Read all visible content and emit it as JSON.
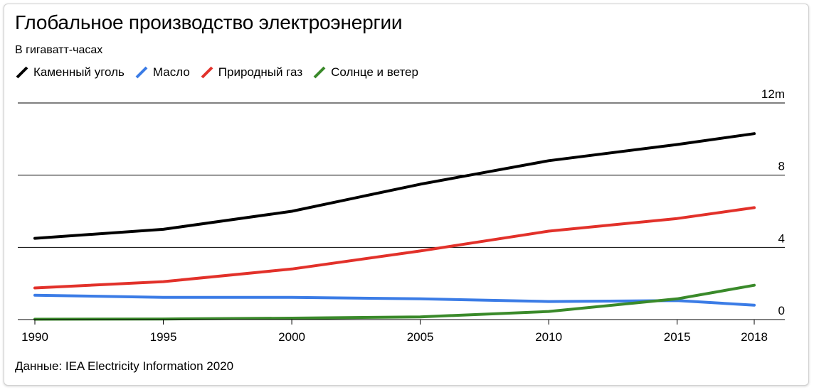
{
  "chart_data": {
    "type": "line",
    "title": "Глобальное производство электроэнергии",
    "subtitle": "В гигаватт-часах",
    "source": "Данные: IEA Electricity Information 2020",
    "x": [
      1990,
      1995,
      2000,
      2005,
      2010,
      2015,
      2018
    ],
    "x_tick_labels": [
      "1990",
      "1995",
      "2000",
      "2005",
      "2010",
      "2015",
      "2018"
    ],
    "y_ticks": [
      0,
      4,
      8,
      12
    ],
    "y_tick_labels": [
      "0",
      "4",
      "8",
      "12m"
    ],
    "ylim": [
      0,
      12
    ],
    "grid": true,
    "legend_position": "top-left",
    "series": [
      {
        "name": "Каменный уголь",
        "color": "#000000",
        "values": [
          4.5,
          5.0,
          6.0,
          7.5,
          8.8,
          9.7,
          10.3
        ]
      },
      {
        "name": "Масло",
        "color": "#3b7ce6",
        "values": [
          1.35,
          1.23,
          1.23,
          1.15,
          1.0,
          1.05,
          0.8
        ]
      },
      {
        "name": "Природный газ",
        "color": "#e2312a",
        "values": [
          1.75,
          2.1,
          2.8,
          3.8,
          4.9,
          5.6,
          6.2
        ]
      },
      {
        "name": "Солнце и ветер",
        "color": "#3a8a2a",
        "values": [
          0.02,
          0.03,
          0.08,
          0.15,
          0.45,
          1.15,
          1.9
        ]
      }
    ]
  }
}
